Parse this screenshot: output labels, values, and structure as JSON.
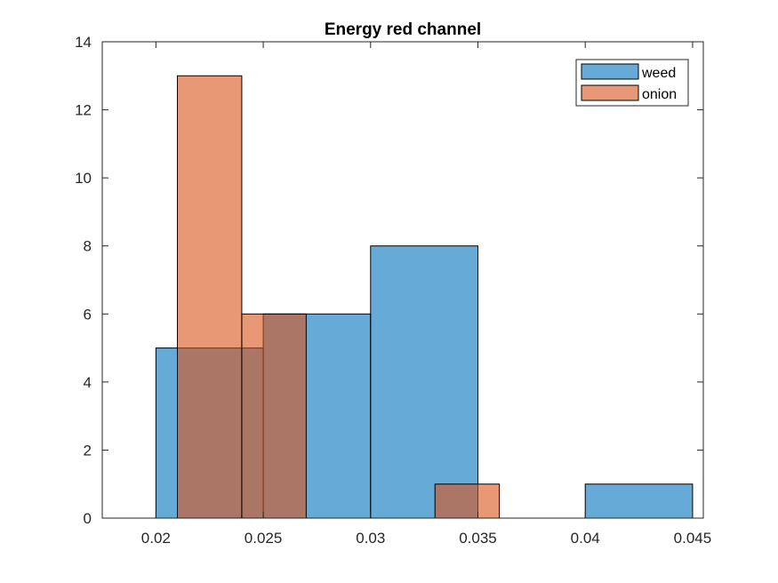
{
  "chart_data": {
    "type": "bar",
    "title": "Energy red channel",
    "xlabel": "",
    "ylabel": "",
    "xlim": [
      0.0175,
      0.0455
    ],
    "ylim": [
      0,
      14
    ],
    "x_ticks": [
      0.02,
      0.025,
      0.03,
      0.035,
      0.04,
      0.045
    ],
    "x_tick_labels": [
      "0.02",
      "0.025",
      "0.03",
      "0.035",
      "0.04",
      "0.045"
    ],
    "y_ticks": [
      0,
      2,
      4,
      6,
      8,
      10,
      12,
      14
    ],
    "y_tick_labels": [
      "0",
      "2",
      "4",
      "6",
      "8",
      "10",
      "12",
      "14"
    ],
    "grid": false,
    "legend_position": "top-right",
    "series": [
      {
        "name": "weed",
        "color": "#0072BD",
        "bins": [
          {
            "x0": 0.02,
            "x1": 0.025,
            "value": 5
          },
          {
            "x0": 0.025,
            "x1": 0.03,
            "value": 6
          },
          {
            "x0": 0.03,
            "x1": 0.035,
            "value": 8
          },
          {
            "x0": 0.035,
            "x1": 0.04,
            "value": 0
          },
          {
            "x0": 0.04,
            "x1": 0.045,
            "value": 1
          }
        ]
      },
      {
        "name": "onion",
        "color": "#D95319",
        "bins": [
          {
            "x0": 0.021,
            "x1": 0.024,
            "value": 13
          },
          {
            "x0": 0.024,
            "x1": 0.027,
            "value": 6
          },
          {
            "x0": 0.027,
            "x1": 0.03,
            "value": 0
          },
          {
            "x0": 0.03,
            "x1": 0.033,
            "value": 0
          },
          {
            "x0": 0.033,
            "x1": 0.036,
            "value": 1
          }
        ]
      }
    ]
  }
}
